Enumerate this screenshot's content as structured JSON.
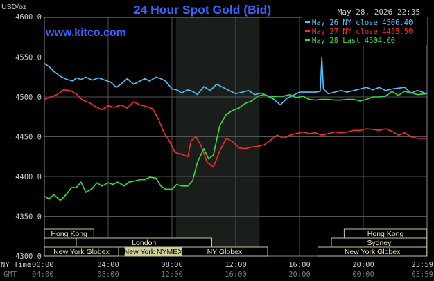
{
  "header": {
    "units": "USD/oz",
    "title": "24 Hour Spot Gold (Bid)",
    "datetime": "May 28, 2026 22:35",
    "website": "www.kitco.com"
  },
  "legend": [
    {
      "label": "May 26 NY close 4506.40",
      "color": "#4fc3ff"
    },
    {
      "label": "May 27 NY close 4455.50",
      "color": "#ff2a2a"
    },
    {
      "label": "May 28 Last 4504.00",
      "color": "#38e038"
    }
  ],
  "axis": {
    "y_labels": [
      "4600.0",
      "4550.0",
      "4500.0",
      "4450.0",
      "4400.0",
      "4350.0",
      "4300.0"
    ],
    "ny_label": "NY Time",
    "gmt_label": "GMT",
    "ny_times": [
      "00:00",
      "04:00",
      "08:00",
      "12:00",
      "16:00",
      "20:00",
      "23:59"
    ],
    "gmt_times": [
      "04:00",
      "08:00",
      "12:00",
      "16:00",
      "20:00",
      "00:00",
      "03:59"
    ]
  },
  "sessions": [
    {
      "label": "Hong Kong",
      "row": 0,
      "start": 0,
      "end": 3.1,
      "active": false
    },
    {
      "label": "Hong Kong",
      "row": 0,
      "start": 18.8,
      "end": 23.99,
      "active": false
    },
    {
      "label": "London",
      "row": 1,
      "start": 2.0,
      "end": 10.5,
      "active": false
    },
    {
      "label": "Sydney",
      "row": 1,
      "start": 18.0,
      "end": 23.99,
      "active": false
    },
    {
      "label": "New York Globex",
      "row": 2,
      "start": 0,
      "end": 4.65,
      "active": false
    },
    {
      "label": "New York NYMEX",
      "row": 2,
      "start": 5.05,
      "end": 8.6,
      "active": true
    },
    {
      "label": "NY Globex",
      "row": 2,
      "start": 8.6,
      "end": 14.0,
      "active": false
    },
    {
      "label": "New York Globex",
      "row": 2,
      "start": 17.15,
      "end": 23.99,
      "active": false
    }
  ],
  "chart_data": {
    "type": "line",
    "title": "24 Hour Spot Gold (Bid)",
    "ylabel": "USD/oz",
    "xlabel": "NY Time",
    "ylim": [
      4300,
      4600
    ],
    "xlim": [
      0,
      24
    ],
    "shaded_region": [
      8.25,
      13.5
    ],
    "grid": true,
    "series": [
      {
        "name": "May 26 NY close 4506.40",
        "color": "#4fc3ff",
        "x": [
          0,
          0.3,
          0.6,
          1.0,
          1.4,
          1.8,
          2.0,
          2.3,
          2.6,
          3.0,
          3.4,
          3.8,
          4.2,
          4.5,
          4.8,
          5.2,
          5.6,
          6.0,
          6.3,
          6.6,
          7.0,
          7.3,
          7.6,
          8.0,
          8.3,
          8.6,
          9.0,
          9.3,
          9.6,
          10.0,
          10.4,
          10.8,
          11.2,
          11.6,
          12.0,
          12.4,
          12.8,
          13.2,
          13.6,
          14.0,
          14.4,
          14.8,
          15.2,
          15.6,
          16.0,
          16.5,
          17.0,
          17.3,
          17.4,
          17.5,
          17.8,
          18.2,
          18.6,
          19.0,
          19.4,
          19.8,
          20.2,
          20.6,
          21.0,
          21.4,
          21.8,
          22.2,
          22.6,
          23.0,
          23.4,
          23.99
        ],
        "values": [
          4542,
          4538,
          4532,
          4526,
          4522,
          4520,
          4524,
          4522,
          4525,
          4521,
          4524,
          4521,
          4518,
          4512,
          4516,
          4523,
          4516,
          4520,
          4523,
          4520,
          4525,
          4523,
          4520,
          4510,
          4509,
          4505,
          4509,
          4507,
          4503,
          4513,
          4508,
          4516,
          4512,
          4508,
          4504,
          4506,
          4508,
          4503,
          4505,
          4501,
          4497,
          4490,
          4498,
          4502,
          4506,
          4506,
          4506,
          4507,
          4550,
          4510,
          4504,
          4506,
          4508,
          4506,
          4508,
          4510,
          4512,
          4509,
          4512,
          4508,
          4510,
          4511,
          4512,
          4505,
          4508,
          4504
        ]
      },
      {
        "name": "May 27 NY close 4455.50",
        "color": "#ff2a2a",
        "x": [
          0,
          0.4,
          0.8,
          1.2,
          1.6,
          2.0,
          2.4,
          2.8,
          3.2,
          3.6,
          4.0,
          4.4,
          4.8,
          5.2,
          5.6,
          6.0,
          6.4,
          6.8,
          7.2,
          7.5,
          7.8,
          8.2,
          8.6,
          9.0,
          9.2,
          9.5,
          9.8,
          10.2,
          10.6,
          11.0,
          11.4,
          11.8,
          12.2,
          12.6,
          13.0,
          13.4,
          13.8,
          14.2,
          14.6,
          15.0,
          15.4,
          15.8,
          16.2,
          16.6,
          17.0,
          17.4,
          17.8,
          18.2,
          18.6,
          19.0,
          19.4,
          19.8,
          20.2,
          20.6,
          21.0,
          21.4,
          21.8,
          22.2,
          22.6,
          23.0,
          23.4,
          23.99
        ],
        "values": [
          4497,
          4500,
          4503,
          4509,
          4508,
          4504,
          4496,
          4493,
          4488,
          4484,
          4489,
          4487,
          4490,
          4486,
          4494,
          4490,
          4488,
          4485,
          4470,
          4455,
          4446,
          4430,
          4428,
          4425,
          4445,
          4450,
          4440,
          4418,
          4412,
          4432,
          4448,
          4444,
          4436,
          4435,
          4437,
          4438,
          4440,
          4446,
          4452,
          4448,
          4452,
          4454,
          4456,
          4454,
          4455,
          4452,
          4454,
          4456,
          4455,
          4456,
          4458,
          4458,
          4460,
          4459,
          4458,
          4460,
          4457,
          4452,
          4455,
          4450,
          4448,
          4448
        ]
      },
      {
        "name": "May 28 Last 4504.00",
        "color": "#38e038",
        "x": [
          0,
          0.3,
          0.6,
          1.0,
          1.4,
          1.7,
          2.0,
          2.3,
          2.6,
          3.0,
          3.3,
          3.6,
          4.0,
          4.3,
          4.6,
          5.0,
          5.3,
          5.6,
          6.0,
          6.3,
          6.6,
          7.0,
          7.3,
          7.6,
          8.0,
          8.3,
          8.6,
          9.0,
          9.3,
          9.6,
          10.0,
          10.3,
          10.6,
          11.0,
          11.4,
          11.8,
          12.2,
          12.6,
          13.0,
          13.4,
          13.8,
          14.2,
          14.6,
          15.0,
          15.4,
          15.8,
          16.2,
          16.6,
          17.0,
          17.4,
          17.8,
          18.2,
          18.6,
          19.0,
          19.4,
          19.8,
          20.2,
          20.6,
          21.0,
          21.4,
          21.8,
          22.2,
          22.6,
          23.0,
          23.4,
          23.99
        ],
        "values": [
          4375,
          4372,
          4377,
          4370,
          4378,
          4386,
          4386,
          4393,
          4380,
          4385,
          4392,
          4388,
          4392,
          4390,
          4393,
          4388,
          4393,
          4394,
          4396,
          4396,
          4399,
          4398,
          4388,
          4384,
          4384,
          4390,
          4388,
          4388,
          4395,
          4418,
          4435,
          4422,
          4427,
          4464,
          4478,
          4483,
          4486,
          4492,
          4495,
          4501,
          4503,
          4500,
          4501,
          4501,
          4503,
          4499,
          4501,
          4497,
          4496,
          4497,
          4497,
          4496,
          4496,
          4497,
          4497,
          4495,
          4497,
          4500,
          4500,
          4501,
          4507,
          4502,
          4507,
          4505,
          4503,
          4504
        ]
      }
    ]
  }
}
